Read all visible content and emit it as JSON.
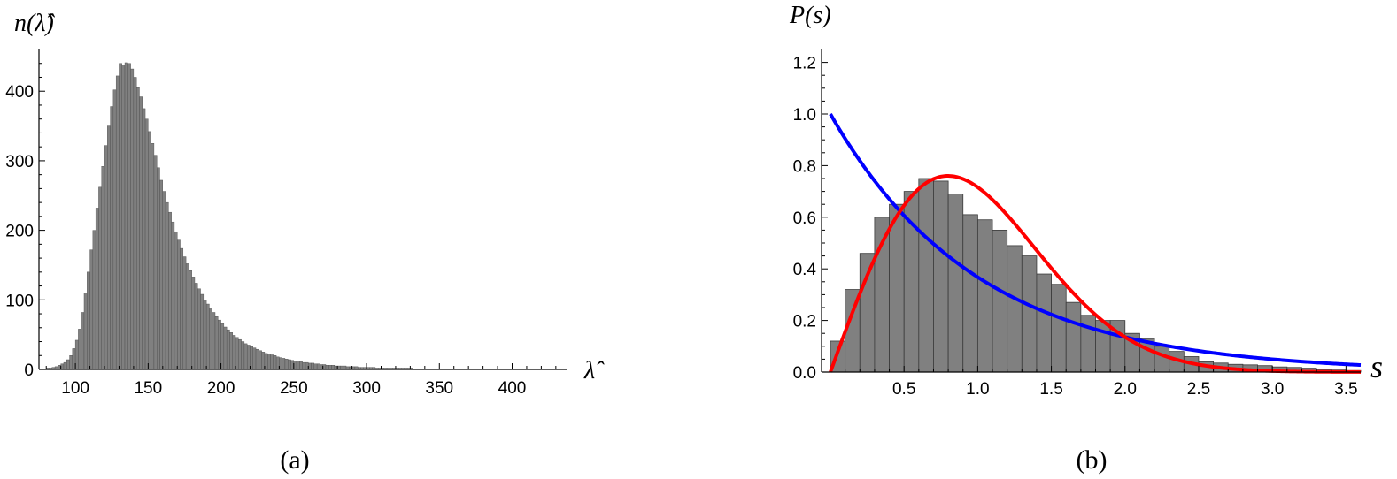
{
  "chart_data": [
    {
      "type": "bar",
      "panel_label": "(a)",
      "ylabel": "n(λ̂)",
      "xlabel": "λ̂",
      "xlim": [
        75,
        438
      ],
      "ylim": [
        0,
        460
      ],
      "x_ticks": [
        100,
        150,
        200,
        250,
        300,
        350,
        400
      ],
      "y_ticks": [
        0,
        100,
        200,
        300,
        400
      ],
      "bar_color": "#808080",
      "bin_start": 80,
      "bin_width": 2,
      "values": [
        2,
        2,
        3,
        4,
        6,
        8,
        10,
        14,
        20,
        30,
        42,
        58,
        82,
        110,
        140,
        172,
        200,
        232,
        262,
        292,
        322,
        350,
        378,
        402,
        422,
        440,
        438,
        441,
        440,
        432,
        420,
        405,
        392,
        375,
        360,
        342,
        325,
        308,
        290,
        272,
        256,
        240,
        226,
        212,
        198,
        186,
        174,
        162,
        152,
        142,
        133,
        124,
        116,
        108,
        100,
        94,
        88,
        82,
        76,
        71,
        66,
        61,
        57,
        53,
        49,
        46,
        43,
        40,
        37,
        35,
        33,
        31,
        29,
        27,
        25,
        23,
        22,
        21,
        20,
        18,
        17,
        16,
        15,
        14,
        13,
        12,
        12,
        11,
        10,
        10,
        9,
        9,
        8,
        8,
        7,
        7,
        6,
        6,
        6,
        5,
        5,
        5,
        5,
        4,
        4,
        4,
        4,
        3,
        3,
        3,
        3,
        3,
        3,
        2,
        2,
        2,
        2,
        2,
        2,
        2,
        2,
        2,
        2,
        2,
        2,
        2,
        1,
        1,
        1,
        1,
        1,
        1,
        1,
        1,
        1,
        1,
        1,
        1,
        1,
        1,
        1,
        1,
        1,
        1,
        1,
        1,
        1,
        1,
        1,
        1,
        1,
        1,
        1,
        1,
        1,
        1,
        1,
        1,
        1,
        1,
        1,
        1,
        1,
        1,
        1,
        1,
        1,
        1,
        1,
        1,
        1,
        1,
        1,
        1
      ]
    },
    {
      "type": "bar",
      "panel_label": "(b)",
      "ylabel": "P(s)",
      "xlabel": "s",
      "xlim": [
        0,
        3.6
      ],
      "ylim": [
        0,
        1.25
      ],
      "x_ticks": [
        "0.5",
        "1.0",
        "1.5",
        "2.0",
        "2.5",
        "3.0",
        "3.5"
      ],
      "y_ticks": [
        "0.0",
        "0.2",
        "0.4",
        "0.6",
        "0.8",
        "1.0",
        "1.2"
      ],
      "bar_color": "#808080",
      "bin_width": 0.1,
      "values": [
        0.12,
        0.32,
        0.46,
        0.6,
        0.65,
        0.7,
        0.75,
        0.74,
        0.69,
        0.61,
        0.59,
        0.55,
        0.49,
        0.45,
        0.38,
        0.34,
        0.27,
        0.22,
        0.2,
        0.2,
        0.15,
        0.13,
        0.1,
        0.08,
        0.06,
        0.04,
        0.035,
        0.03,
        0.028,
        0.025,
        0.02,
        0.018,
        0.015,
        0.01,
        0.008,
        0.006
      ],
      "series": [
        {
          "color": "#0000ff",
          "curve": "exp(-s)"
        },
        {
          "color": "#ff0000",
          "curve": "(pi/2) s exp(-pi s^2 / 4)"
        }
      ]
    }
  ]
}
